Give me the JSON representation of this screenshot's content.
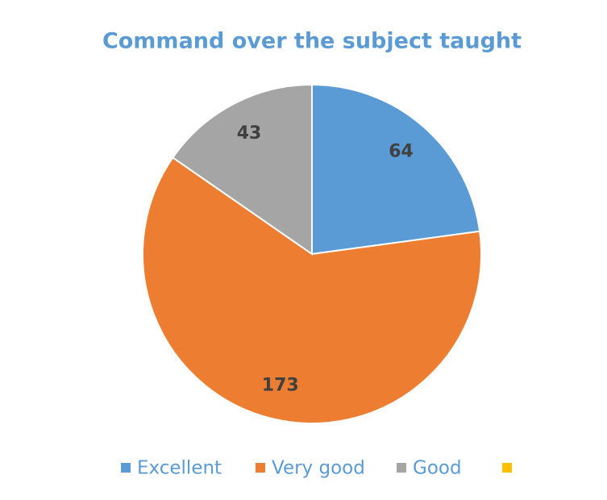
{
  "chart_data": {
    "type": "pie",
    "title": "Command over the subject taught",
    "categories": [
      "Excellent",
      "Very good",
      "Good",
      null
    ],
    "values": [
      64,
      173,
      43,
      0
    ],
    "colors": [
      "#5b9bd5",
      "#ed7d31",
      "#a5a5a5",
      "#ffc000"
    ],
    "legend": "bottom"
  }
}
